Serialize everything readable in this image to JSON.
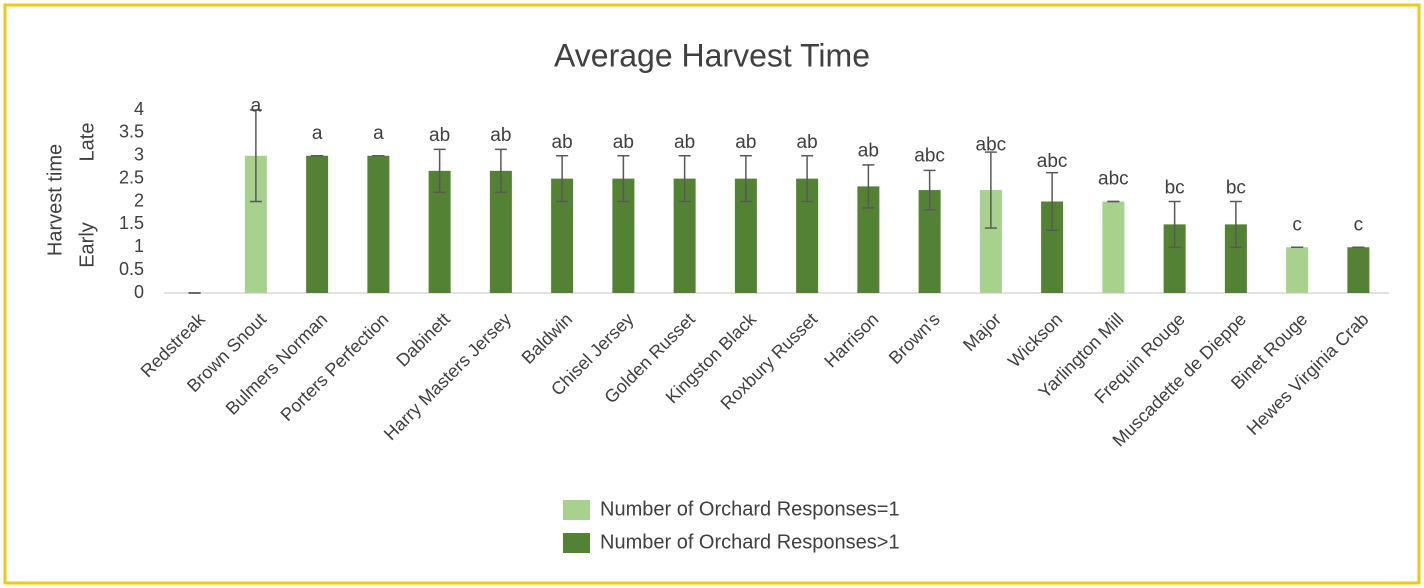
{
  "chart_data": {
    "type": "bar",
    "title": "Average Harvest Time",
    "ylabel": "Harvest time",
    "ylabel_low": "Early",
    "ylabel_high": "Late",
    "categories": [
      "Redstreak",
      "Brown Snout",
      "Bulmers Norman",
      "Porters Perfection",
      "Dabinett",
      "Harry Masters Jersey",
      "Baldwin",
      "Chisel Jersey",
      "Golden Russet",
      "Kingston Black",
      "Roxbury Russet",
      "Harrison",
      "Brown's",
      "Major",
      "Wickson",
      "Yarlington Mill",
      "Frequin Rouge",
      "Muscadette de Dieppe",
      "Binet Rouge",
      "Hewes Virginia Crab"
    ],
    "series": [
      {
        "name": "Number of Orchard Responses=1",
        "color": "#a9d18e",
        "values": [
          null,
          3,
          null,
          null,
          null,
          null,
          null,
          null,
          null,
          null,
          null,
          null,
          null,
          2.25,
          null,
          2,
          null,
          null,
          1,
          null
        ],
        "errors": [
          null,
          1,
          null,
          null,
          null,
          null,
          null,
          null,
          null,
          null,
          null,
          null,
          null,
          0.83,
          null,
          0,
          null,
          null,
          0,
          null
        ]
      },
      {
        "name": "Number of Orchard Responses>1",
        "color": "#548235",
        "values": [
          0,
          null,
          3,
          3,
          2.67,
          2.67,
          2.5,
          2.5,
          2.5,
          2.5,
          2.5,
          2.33,
          2.25,
          null,
          2,
          null,
          1.5,
          1.5,
          null,
          1
        ],
        "errors": [
          0,
          null,
          0,
          0,
          0.47,
          0.47,
          0.5,
          0.5,
          0.5,
          0.5,
          0.5,
          0.47,
          0.43,
          null,
          0.63,
          null,
          0.5,
          0.5,
          null,
          0
        ]
      }
    ],
    "labels": [
      null,
      "a",
      "a",
      "a",
      "ab",
      "ab",
      "ab",
      "ab",
      "ab",
      "ab",
      "ab",
      "ab",
      "abc",
      "abc",
      "abc",
      "abc",
      "bc",
      "bc",
      "c",
      "c"
    ],
    "ylim": [
      0,
      4
    ],
    "yticks": [
      0,
      0.5,
      1,
      1.5,
      2,
      2.5,
      3,
      3.5,
      4
    ],
    "grid": false,
    "legend": "bottom"
  }
}
